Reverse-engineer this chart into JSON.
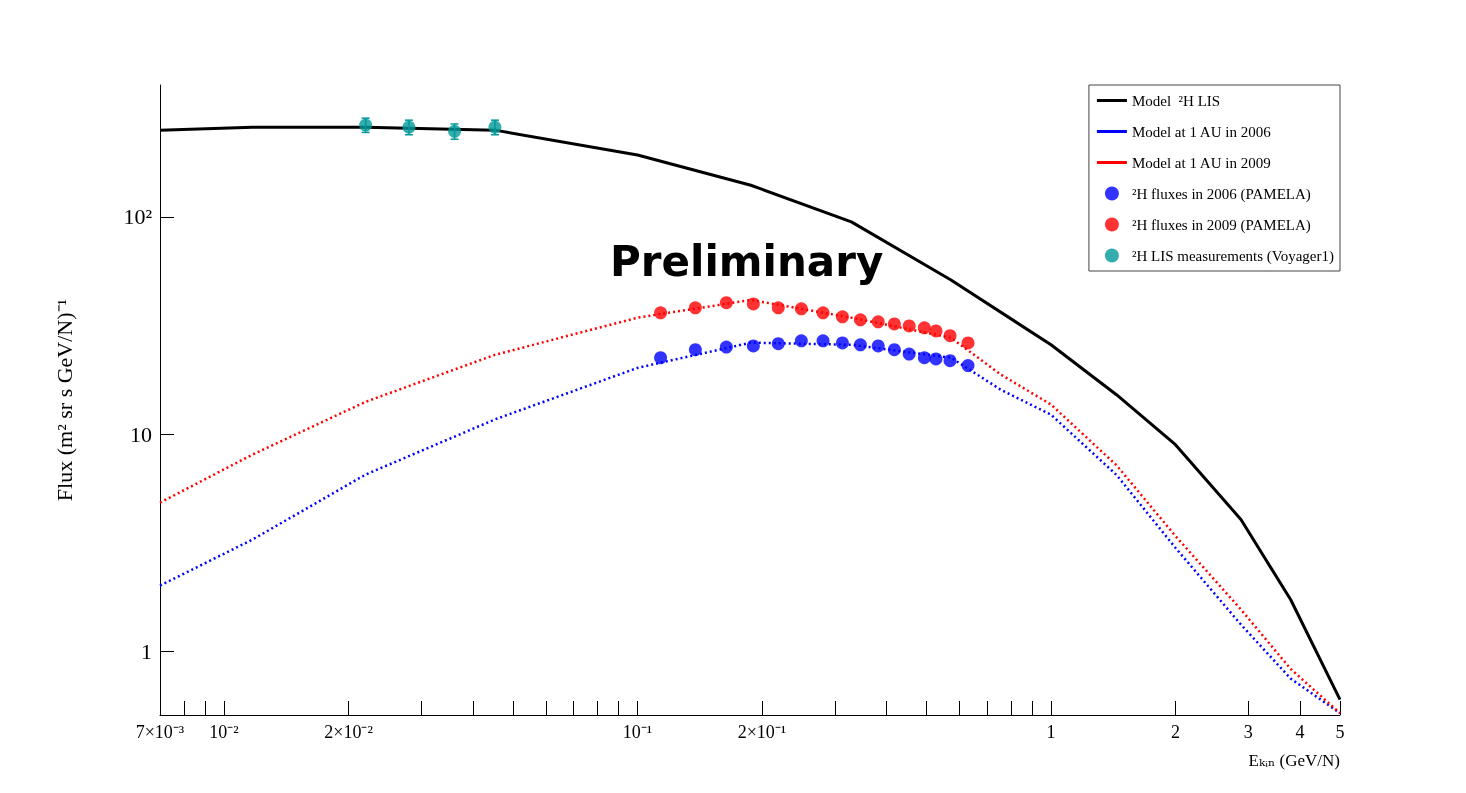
{
  "chart_data": {
    "type": "line",
    "xlabel": "Eₖᵢₙ (GeV/N)",
    "ylabel": "Flux (m² sr s GeV/N)⁻¹",
    "annotations": [
      "Preliminary"
    ],
    "log": "xy",
    "grid": false,
    "legend": "top right",
    "xlim": [
      0.007,
      5
    ],
    "ylim": [
      0.51,
      405
    ],
    "xticks": [
      {
        "value": 0.007,
        "label": "7×10⁻³"
      },
      {
        "value": 0.008,
        "label": null
      },
      {
        "value": 0.009,
        "label": null
      },
      {
        "value": 0.01,
        "label": "10⁻²"
      },
      {
        "value": 0.02,
        "label": "2×10⁻²"
      },
      {
        "value": 0.03,
        "label": null
      },
      {
        "value": 0.04,
        "label": null
      },
      {
        "value": 0.05,
        "label": null
      },
      {
        "value": 0.06,
        "label": null
      },
      {
        "value": 0.07,
        "label": null
      },
      {
        "value": 0.08,
        "label": null
      },
      {
        "value": 0.09,
        "label": null
      },
      {
        "value": 0.1,
        "label": "10⁻¹"
      },
      {
        "value": 0.2,
        "label": "2×10⁻¹"
      },
      {
        "value": 0.3,
        "label": null
      },
      {
        "value": 0.4,
        "label": null
      },
      {
        "value": 0.5,
        "label": null
      },
      {
        "value": 0.6,
        "label": null
      },
      {
        "value": 0.7,
        "label": null
      },
      {
        "value": 0.8,
        "label": null
      },
      {
        "value": 0.9,
        "label": null
      },
      1,
      2,
      3,
      4,
      5
    ],
    "yticks": [
      1,
      10,
      {
        "value": 100,
        "label": "10²"
      }
    ],
    "series": [
      {
        "name": "Model  ²H LIS",
        "color": "#000000",
        "line_style": "solid",
        "marker": "none",
        "x": [
          0.007,
          0.0117,
          0.022,
          0.0452,
          0.1,
          0.188,
          0.329,
          0.573,
          1,
          1.44,
          2.0,
          2.88,
          3.8,
          5.0
        ],
        "values": [
          251,
          259,
          259,
          251,
          193,
          140,
          94.9,
          51.3,
          25.8,
          15.2,
          8.95,
          4.05,
          1.73,
          0.6
        ]
      },
      {
        "name": "Model at 1 AU in 2006",
        "color": "#0000ff",
        "line_style": "dotted",
        "marker": "none",
        "x": [
          0.007,
          0.0117,
          0.022,
          0.0452,
          0.1,
          0.188,
          0.329,
          0.573,
          0.757,
          1,
          1.44,
          2.0,
          2.88,
          3.8,
          5.0
        ],
        "values": [
          2.01,
          3.27,
          6.52,
          11.7,
          20.2,
          26.4,
          25.8,
          22.5,
          16.0,
          12.3,
          6.5,
          3.0,
          1.33,
          0.75,
          0.52
        ]
      },
      {
        "name": "Model at 1 AU in 2009",
        "color": "#ff0000",
        "line_style": "dotted",
        "marker": "none",
        "x": [
          0.007,
          0.0117,
          0.022,
          0.0452,
          0.1,
          0.188,
          0.329,
          0.573,
          0.757,
          1,
          1.44,
          2.0,
          2.88,
          3.8,
          5.0
        ],
        "values": [
          4.84,
          8.05,
          14.1,
          23.2,
          34.4,
          41.5,
          34.4,
          27.8,
          18.8,
          13.7,
          7.2,
          3.4,
          1.56,
          0.83,
          0.52
        ]
      },
      {
        "name": "²H fluxes in 2006 (PAMELA)",
        "type": "scatter",
        "color": "#0000ff",
        "marker": "circle",
        "x": [
          0.1137,
          0.138,
          0.164,
          0.1906,
          0.219,
          0.249,
          0.281,
          0.313,
          0.346,
          0.382,
          0.418,
          0.454,
          0.494,
          0.527,
          0.57,
          0.63
        ],
        "values": [
          22.5,
          24.5,
          25.2,
          25.5,
          26.1,
          26.9,
          26.9,
          26.3,
          25.8,
          25.5,
          24.5,
          23.4,
          22.5,
          22.2,
          21.8,
          20.7
        ]
      },
      {
        "name": "²H fluxes in 2009 (PAMELA)",
        "type": "scatter",
        "color": "#ff0000",
        "marker": "circle",
        "x": [
          0.1137,
          0.138,
          0.164,
          0.1906,
          0.219,
          0.249,
          0.281,
          0.313,
          0.346,
          0.382,
          0.418,
          0.454,
          0.494,
          0.527,
          0.57,
          0.63
        ],
        "values": [
          36.2,
          38.2,
          40.3,
          39.8,
          38.2,
          37.8,
          36.2,
          34.7,
          33.6,
          32.9,
          32.2,
          31.5,
          30.9,
          29.9,
          28.4,
          26.3
        ]
      },
      {
        "name": "²H LIS measurements (Voyager1)",
        "type": "scatter",
        "color": "#009999",
        "marker": "circle",
        "x": [
          0.022,
          0.028,
          0.0361,
          0.0452
        ],
        "values": [
          265,
          259,
          248,
          259
        ],
        "errors": [
          20,
          20,
          20,
          20
        ]
      }
    ]
  }
}
